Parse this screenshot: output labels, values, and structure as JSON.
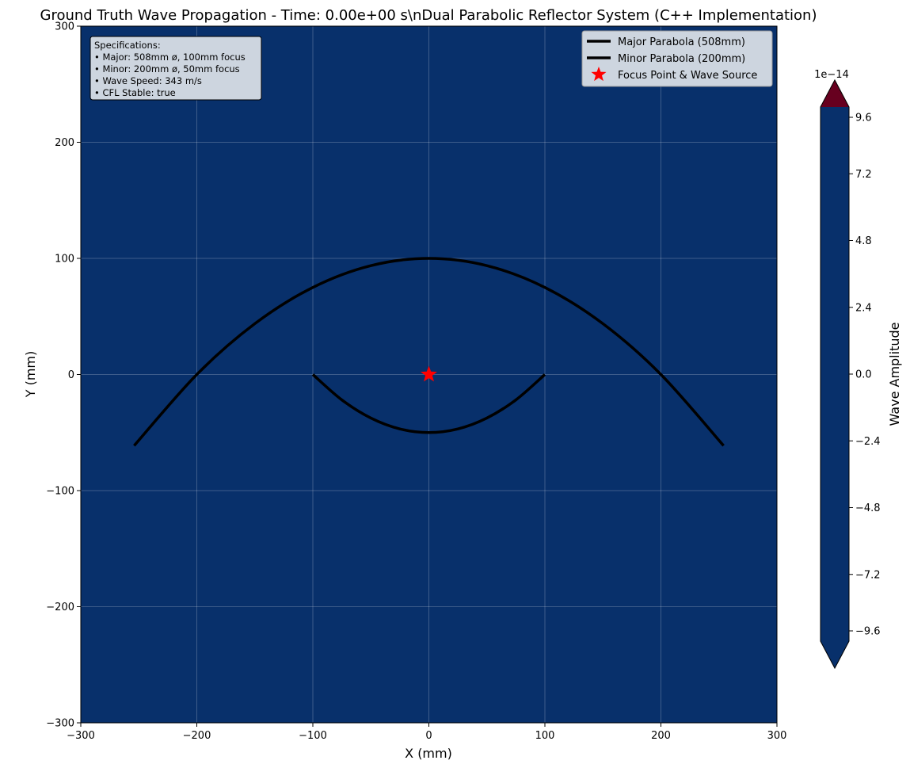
{
  "chart_data": {
    "type": "heatmap",
    "title": "Ground Truth Wave Propagation - Time: 0.00e+00 s\\nDual Parabolic Reflector System (C++ Implementation)",
    "xlabel": "X (mm)",
    "ylabel": "Y (mm)",
    "xlim": [
      -300,
      300
    ],
    "ylim": [
      -300,
      300
    ],
    "xticks": [
      -300,
      -200,
      -100,
      0,
      100,
      200,
      300
    ],
    "yticks": [
      -300,
      -200,
      -100,
      0,
      100,
      200,
      300
    ],
    "grid": true,
    "legend_position": "upper right",
    "field": {
      "uniform_value": 0,
      "color": "#08306b"
    },
    "series": [
      {
        "name": "Major Parabola (508mm)",
        "kind": "line",
        "color": "#000000",
        "x": [
          -254,
          -200,
          -150,
          -100,
          -50,
          0,
          50,
          100,
          150,
          200,
          254
        ],
        "y": [
          -61.29,
          0,
          43.75,
          75,
          93.75,
          100,
          93.75,
          75,
          43.75,
          0,
          -61.29
        ]
      },
      {
        "name": "Minor Parabola (200mm)",
        "kind": "line",
        "color": "#000000",
        "x": [
          -100,
          -75,
          -50,
          -25,
          0,
          25,
          50,
          75,
          100
        ],
        "y": [
          0,
          -21.875,
          -37.5,
          -46.875,
          -50,
          -46.875,
          -37.5,
          -21.875,
          0
        ]
      },
      {
        "name": "Focus Point & Wave Source",
        "kind": "marker",
        "marker": "star",
        "color": "#ff0000",
        "x": [
          0
        ],
        "y": [
          0
        ]
      }
    ],
    "annotation": {
      "lines": [
        "Specifications:",
        "• Major: 508mm ø, 100mm focus",
        "• Minor: 200mm ø, 50mm focus",
        "• Wave Speed: 343 m/s",
        "• CFL Stable: true"
      ],
      "position": "upper left"
    },
    "colorbar": {
      "label": "Wave Amplitude",
      "offset_text": "1e−14",
      "range": [
        -9.6,
        9.6
      ],
      "ticks": [
        -9.6,
        -7.2,
        -4.8,
        -2.4,
        0.0,
        2.4,
        4.8,
        7.2,
        9.6
      ],
      "tick_labels": [
        "−9.6",
        "−7.2",
        "−4.8",
        "−2.4",
        "0.0",
        "2.4",
        "4.8",
        "7.2",
        "9.6"
      ],
      "body_color": "#08306b",
      "upper_extend_color": "#67001f",
      "lower_extend_color": "#08306b"
    }
  }
}
